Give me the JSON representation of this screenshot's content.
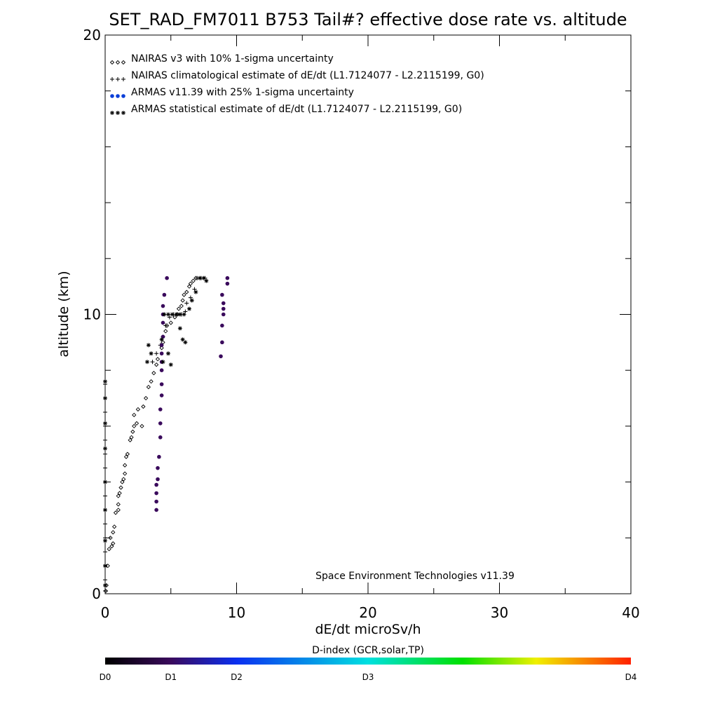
{
  "chart_data": {
    "type": "scatter",
    "title": "SET_RAD_FM7011  B753 Tail#? effective dose rate vs. altitude",
    "xlabel": "dE/dt microSv/h",
    "ylabel": "altitude (km)",
    "xlim": [
      0,
      40
    ],
    "ylim": [
      0,
      20
    ],
    "x_ticks": [
      0,
      10,
      20,
      30,
      40
    ],
    "y_ticks": [
      0,
      10,
      20
    ],
    "x_minor_step": 5,
    "y_minor_step": 2,
    "grid": false,
    "legend_position": "top-left",
    "credit": "Space Environment Technologies v11.39",
    "series": [
      {
        "name": "NAIRAS v3 with 10% 1-sigma uncertainty",
        "marker": "diamond",
        "color": "#000000",
        "points": [
          [
            0.05,
            0.1
          ],
          [
            0.1,
            0.3
          ],
          [
            0.2,
            1.0
          ],
          [
            0.3,
            1.6
          ],
          [
            0.5,
            1.7
          ],
          [
            0.6,
            1.8
          ],
          [
            0.4,
            2.0
          ],
          [
            0.6,
            2.2
          ],
          [
            0.7,
            2.4
          ],
          [
            0.8,
            2.9
          ],
          [
            1.0,
            3.0
          ],
          [
            1.0,
            3.2
          ],
          [
            1.0,
            3.5
          ],
          [
            1.1,
            3.6
          ],
          [
            1.2,
            3.8
          ],
          [
            1.3,
            4.0
          ],
          [
            1.4,
            4.1
          ],
          [
            1.5,
            4.3
          ],
          [
            1.5,
            4.6
          ],
          [
            1.6,
            4.9
          ],
          [
            1.7,
            5.0
          ],
          [
            1.9,
            5.5
          ],
          [
            2.0,
            5.6
          ],
          [
            2.1,
            5.8
          ],
          [
            2.2,
            6.0
          ],
          [
            2.4,
            6.1
          ],
          [
            2.8,
            6.0
          ],
          [
            2.2,
            6.4
          ],
          [
            2.5,
            6.6
          ],
          [
            2.9,
            6.7
          ],
          [
            3.1,
            7.0
          ],
          [
            3.3,
            7.4
          ],
          [
            3.5,
            7.6
          ],
          [
            3.7,
            7.9
          ],
          [
            3.9,
            8.2
          ],
          [
            4.0,
            8.4
          ],
          [
            4.3,
            8.8
          ],
          [
            4.4,
            9.0
          ],
          [
            4.6,
            9.4
          ],
          [
            4.7,
            9.6
          ],
          [
            5.0,
            9.7
          ],
          [
            5.3,
            9.9
          ],
          [
            5.5,
            10.0
          ],
          [
            5.6,
            10.2
          ],
          [
            5.8,
            10.3
          ],
          [
            5.9,
            10.5
          ],
          [
            6.0,
            10.7
          ],
          [
            6.2,
            10.8
          ],
          [
            6.4,
            11.0
          ],
          [
            6.5,
            11.1
          ],
          [
            6.7,
            11.2
          ],
          [
            6.9,
            11.3
          ]
        ]
      },
      {
        "name": "NAIRAS climatological estimate of dE/dt (L1.7124077 - L2.2115199, G0)",
        "marker": "plus",
        "color": "#000000",
        "points": [
          [
            0.0,
            0.1
          ],
          [
            0.0,
            0.5
          ],
          [
            0.0,
            1.0
          ],
          [
            0.0,
            1.5
          ],
          [
            0.0,
            2.0
          ],
          [
            0.0,
            2.5
          ],
          [
            0.0,
            3.0
          ],
          [
            0.0,
            3.5
          ],
          [
            0.0,
            4.0
          ],
          [
            0.0,
            4.5
          ],
          [
            0.0,
            5.0
          ],
          [
            0.0,
            5.5
          ],
          [
            0.0,
            6.0
          ],
          [
            0.0,
            6.5
          ],
          [
            0.0,
            7.0
          ],
          [
            0.0,
            7.5
          ],
          [
            3.6,
            8.3
          ],
          [
            3.9,
            8.6
          ],
          [
            4.2,
            8.9
          ],
          [
            4.4,
            9.2
          ],
          [
            4.6,
            9.6
          ],
          [
            4.9,
            9.9
          ],
          [
            5.2,
            10.0
          ],
          [
            5.5,
            10.0
          ],
          [
            5.8,
            10.0
          ],
          [
            6.1,
            10.1
          ],
          [
            6.2,
            10.4
          ],
          [
            6.5,
            10.6
          ],
          [
            6.8,
            10.9
          ],
          [
            7.0,
            11.3
          ],
          [
            7.3,
            11.3
          ],
          [
            7.6,
            11.3
          ]
        ]
      },
      {
        "name": "ARMAS v11.39 with 25% 1-sigma uncertainty",
        "marker": "dot",
        "color": "#3a0a5c",
        "points": [
          [
            3.9,
            3.0
          ],
          [
            3.9,
            3.3
          ],
          [
            3.9,
            3.6
          ],
          [
            3.9,
            3.9
          ],
          [
            4.0,
            4.1
          ],
          [
            4.0,
            4.5
          ],
          [
            4.1,
            4.9
          ],
          [
            4.2,
            5.6
          ],
          [
            4.2,
            6.1
          ],
          [
            4.2,
            6.6
          ],
          [
            4.3,
            7.1
          ],
          [
            4.3,
            7.5
          ],
          [
            4.3,
            8.0
          ],
          [
            4.3,
            8.3
          ],
          [
            4.3,
            8.6
          ],
          [
            4.3,
            8.9
          ],
          [
            4.4,
            9.2
          ],
          [
            4.4,
            9.7
          ],
          [
            4.4,
            10.0
          ],
          [
            4.4,
            10.3
          ],
          [
            4.5,
            10.7
          ],
          [
            4.7,
            11.3
          ],
          [
            8.8,
            8.5
          ],
          [
            8.9,
            9.0
          ],
          [
            8.9,
            9.6
          ],
          [
            9.0,
            10.0
          ],
          [
            9.0,
            10.2
          ],
          [
            9.0,
            10.4
          ],
          [
            8.9,
            10.7
          ],
          [
            9.3,
            11.1
          ],
          [
            9.3,
            11.3
          ]
        ]
      },
      {
        "name": "ARMAS statistical estimate of dE/dt (L1.7124077 - L2.2115199, G0)",
        "marker": "asterisk",
        "color": "#000000",
        "points": [
          [
            0.0,
            0.3
          ],
          [
            0.0,
            1.0
          ],
          [
            0.0,
            1.9
          ],
          [
            0.0,
            3.0
          ],
          [
            0.0,
            4.0
          ],
          [
            0.0,
            5.2
          ],
          [
            0.0,
            6.1
          ],
          [
            0.0,
            7.0
          ],
          [
            0.0,
            7.6
          ],
          [
            3.2,
            8.3
          ],
          [
            3.3,
            8.9
          ],
          [
            3.5,
            8.6
          ],
          [
            4.4,
            8.3
          ],
          [
            4.8,
            8.6
          ],
          [
            5.0,
            8.2
          ],
          [
            4.3,
            9.1
          ],
          [
            5.7,
            9.5
          ],
          [
            5.9,
            9.1
          ],
          [
            6.1,
            9.0
          ],
          [
            4.5,
            10.0
          ],
          [
            4.8,
            10.0
          ],
          [
            5.1,
            10.0
          ],
          [
            5.4,
            10.0
          ],
          [
            5.7,
            10.0
          ],
          [
            6.0,
            10.0
          ],
          [
            6.4,
            10.2
          ],
          [
            6.6,
            10.5
          ],
          [
            6.9,
            10.8
          ],
          [
            7.2,
            11.3
          ],
          [
            7.5,
            11.3
          ],
          [
            7.7,
            11.2
          ]
        ]
      }
    ],
    "colorbar": {
      "title": "D-index (GCR,solar,TP)",
      "labels": [
        {
          "text": "D0",
          "pos": 0.0
        },
        {
          "text": "D1",
          "pos": 0.125
        },
        {
          "text": "D2",
          "pos": 0.25
        },
        {
          "text": "D3",
          "pos": 0.5
        },
        {
          "text": "D4",
          "pos": 1.0
        }
      ],
      "stops": [
        {
          "pos": 0.0,
          "color": "#000000"
        },
        {
          "pos": 0.125,
          "color": "#3a0a5c"
        },
        {
          "pos": 0.25,
          "color": "#0a2ff0"
        },
        {
          "pos": 0.5,
          "color": "#00e0e0"
        },
        {
          "pos": 0.68,
          "color": "#00e000"
        },
        {
          "pos": 0.82,
          "color": "#f0f000"
        },
        {
          "pos": 1.0,
          "color": "#ff2000"
        }
      ]
    }
  },
  "legend_colors": {
    "armas_legend_dot": "#0b3fd8"
  }
}
